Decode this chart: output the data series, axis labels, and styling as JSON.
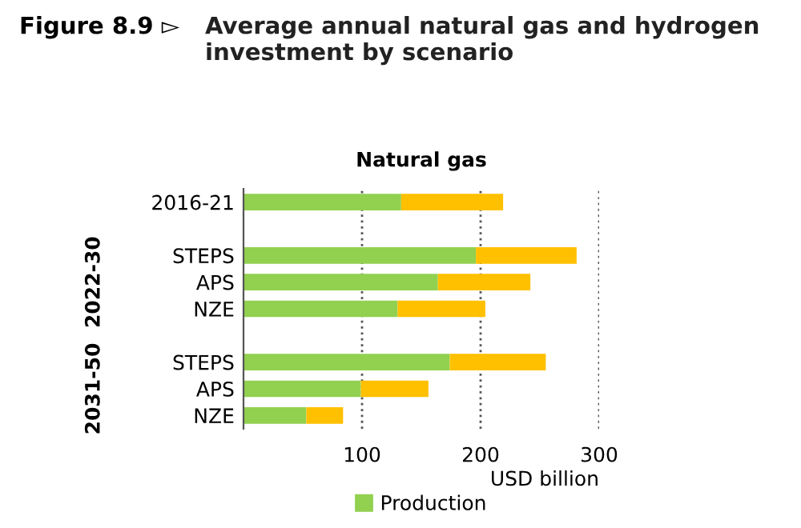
{
  "chart_data": {
    "type": "bar",
    "orientation": "horizontal",
    "stacked": true,
    "title": "Average annual natural gas and hydrogen investment by scenario",
    "subtitle": "Natural gas",
    "annotations": [
      "Figure 8.9 ▻",
      "2022-30",
      "2031-50"
    ],
    "categories": [
      "2016-21",
      null,
      "STEPS",
      "APS",
      "NZE",
      null,
      "STEPS",
      "APS",
      "NZE"
    ],
    "series": [
      {
        "name": "Production",
        "color": "#92d050",
        "values": [
          133,
          null,
          196,
          164,
          130,
          null,
          174,
          99,
          53
        ]
      },
      {
        "color": "#ffc000",
        "values": [
          86,
          null,
          85,
          78,
          74,
          null,
          81,
          57,
          31
        ]
      }
    ],
    "xlim": [
      0,
      300
    ],
    "xticks": [
      100,
      200,
      300
    ],
    "xlabel": "USD billion",
    "grid": "x",
    "legend": "bottom"
  }
}
